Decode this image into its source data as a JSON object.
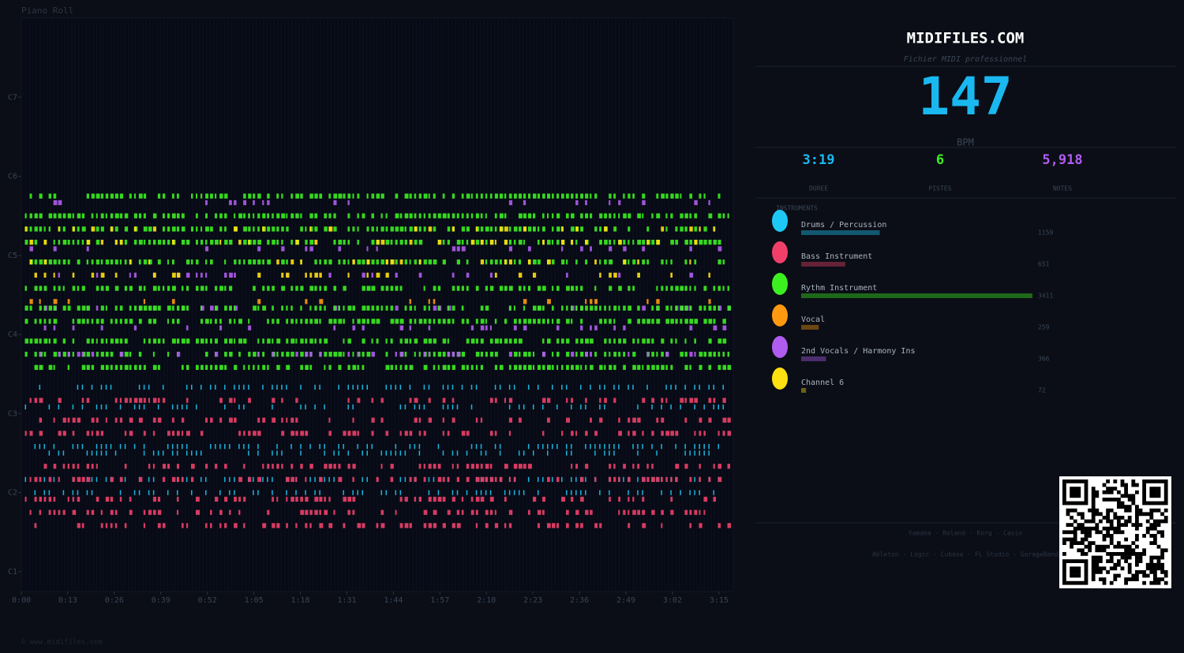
{
  "title": "Piano Roll",
  "chart_data": {
    "type": "pianoroll",
    "xlim": [
      0,
      199
    ],
    "ylim": [
      21,
      108
    ],
    "xticks": [
      {
        "value": 0,
        "label": "0:00"
      },
      {
        "value": 13,
        "label": "0:13"
      },
      {
        "value": 26,
        "label": "0:26"
      },
      {
        "value": 39,
        "label": "0:39"
      },
      {
        "value": 52,
        "label": "0:52"
      },
      {
        "value": 65,
        "label": "1:05"
      },
      {
        "value": 78,
        "label": "1:18"
      },
      {
        "value": 91,
        "label": "1:31"
      },
      {
        "value": 104,
        "label": "1:44"
      },
      {
        "value": 117,
        "label": "1:57"
      },
      {
        "value": 130,
        "label": "2:10"
      },
      {
        "value": 143,
        "label": "2:23"
      },
      {
        "value": 156,
        "label": "2:36"
      },
      {
        "value": 169,
        "label": "2:49"
      },
      {
        "value": 182,
        "label": "3:02"
      },
      {
        "value": 195,
        "label": "3:15"
      }
    ],
    "yticks": [
      {
        "value": 24,
        "label": "C1"
      },
      {
        "value": 36,
        "label": "C2"
      },
      {
        "value": 48,
        "label": "C3"
      },
      {
        "value": 60,
        "label": "C4"
      },
      {
        "value": 72,
        "label": "C5"
      },
      {
        "value": 84,
        "label": "C6"
      },
      {
        "value": 96,
        "label": "C7"
      }
    ],
    "lanes": [
      {
        "pitch": 81,
        "track": 2
      },
      {
        "pitch": 80,
        "track": 4
      },
      {
        "pitch": 78,
        "track": 2
      },
      {
        "pitch": 76,
        "track": 2
      },
      {
        "pitch": 76,
        "track": 5
      },
      {
        "pitch": 74,
        "track": 2
      },
      {
        "pitch": 74,
        "track": 5
      },
      {
        "pitch": 73,
        "track": 4
      },
      {
        "pitch": 71,
        "track": 2
      },
      {
        "pitch": 71,
        "track": 5
      },
      {
        "pitch": 69,
        "track": 4
      },
      {
        "pitch": 69,
        "track": 5
      },
      {
        "pitch": 67,
        "track": 2
      },
      {
        "pitch": 65,
        "track": 3
      },
      {
        "pitch": 64,
        "track": 4
      },
      {
        "pitch": 64,
        "track": 2
      },
      {
        "pitch": 62,
        "track": 2
      },
      {
        "pitch": 61,
        "track": 4
      },
      {
        "pitch": 59,
        "track": 2
      },
      {
        "pitch": 57,
        "track": 2
      },
      {
        "pitch": 57,
        "track": 4
      },
      {
        "pitch": 55,
        "track": 2
      },
      {
        "pitch": 52,
        "track": 0
      },
      {
        "pitch": 50,
        "track": 1
      },
      {
        "pitch": 49,
        "track": 0
      },
      {
        "pitch": 47,
        "track": 1
      },
      {
        "pitch": 45,
        "track": 1
      },
      {
        "pitch": 43,
        "track": 0
      },
      {
        "pitch": 42,
        "track": 0
      },
      {
        "pitch": 40,
        "track": 1
      },
      {
        "pitch": 38,
        "track": 0
      },
      {
        "pitch": 38,
        "track": 1
      },
      {
        "pitch": 36,
        "track": 0
      },
      {
        "pitch": 35,
        "track": 1
      },
      {
        "pitch": 33,
        "track": 1
      },
      {
        "pitch": 31,
        "track": 1
      }
    ]
  },
  "brand": {
    "title": "MIDIFILES.COM",
    "subtitle": "Fichier MIDI professionnel"
  },
  "stats": {
    "bpm": 147,
    "bpm_label": "BPM",
    "duration": "3:19",
    "duration_label": "DUREE",
    "tracks": 6,
    "tracks_label": "PISTES",
    "notes": {
      "value": 5918,
      "label": "5,918"
    },
    "notes_label": "NOTES"
  },
  "instruments": {
    "heading": "INSTRUMENTS",
    "items": [
      {
        "name": "Drums / Percussion",
        "color": "#1ec8f5",
        "count": 1159
      },
      {
        "name": "Bass Instrument",
        "color": "#f0406a",
        "count": 651
      },
      {
        "name": "Rythm Instrument",
        "color": "#3cf020",
        "count": 3411
      },
      {
        "name": "Vocal",
        "color": "#ff9a10",
        "count": 259
      },
      {
        "name": "2nd Vocals / Harmony Ins",
        "color": "#b05cf0",
        "count": 366
      },
      {
        "name": "Channel 6",
        "color": "#ffe010",
        "count": 72
      }
    ]
  },
  "footer": {
    "hardware": "Yamaha · Roland · Korg · Casio",
    "software": "Ableton · Logic · Cubase · FL Studio · GarageBand",
    "copyright": "© www.midifiles.com"
  }
}
